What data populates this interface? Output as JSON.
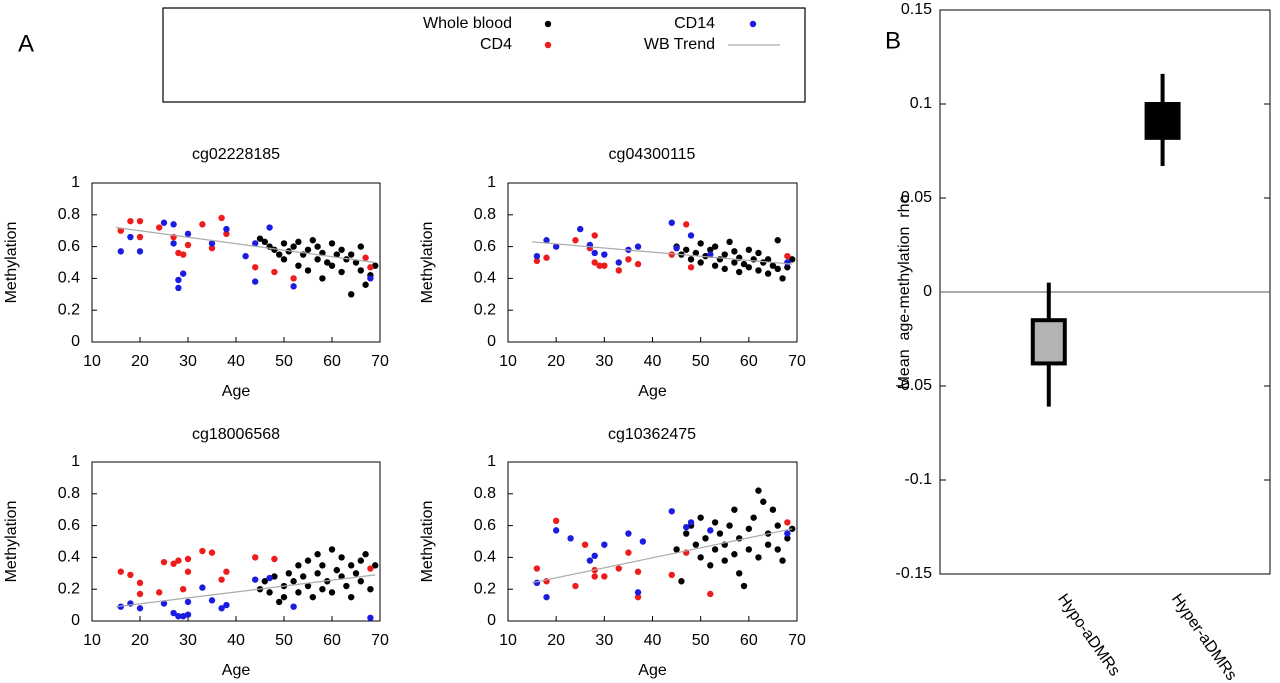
{
  "chart_data": [
    {
      "type": "scatter",
      "panel_label": "A",
      "title": "cg02228185",
      "xlabel": "Age",
      "ylabel": "Methylation",
      "xlim": [
        10,
        70
      ],
      "ylim": [
        0,
        1
      ],
      "xticks": [
        10,
        20,
        30,
        40,
        50,
        60,
        70
      ],
      "yticks": [
        0,
        0.2,
        0.4,
        0.6,
        0.8,
        1
      ],
      "series": [
        {
          "name": "Whole blood",
          "color": "#000000",
          "x": [
            45,
            46,
            47,
            48,
            49,
            50,
            50,
            51,
            52,
            53,
            53,
            54,
            55,
            55,
            56,
            57,
            57,
            58,
            58,
            59,
            60,
            60,
            61,
            62,
            62,
            63,
            64,
            64,
            65,
            66,
            66,
            67,
            68,
            69
          ],
          "values": [
            0.65,
            0.63,
            0.6,
            0.58,
            0.55,
            0.62,
            0.52,
            0.57,
            0.6,
            0.48,
            0.63,
            0.55,
            0.58,
            0.45,
            0.64,
            0.52,
            0.6,
            0.4,
            0.56,
            0.5,
            0.62,
            0.48,
            0.55,
            0.44,
            0.58,
            0.52,
            0.3,
            0.55,
            0.5,
            0.45,
            0.6,
            0.36,
            0.42,
            0.48
          ]
        },
        {
          "name": "CD4",
          "color": "#ee1c1c",
          "x": [
            16,
            18,
            20,
            20,
            24,
            27,
            28,
            29,
            30,
            33,
            35,
            37,
            38,
            44,
            48,
            52,
            67,
            68
          ],
          "values": [
            0.7,
            0.76,
            0.76,
            0.66,
            0.72,
            0.66,
            0.56,
            0.55,
            0.61,
            0.74,
            0.59,
            0.78,
            0.68,
            0.47,
            0.44,
            0.4,
            0.53,
            0.47
          ]
        },
        {
          "name": "CD14",
          "color": "#1c1ce0",
          "x": [
            16,
            18,
            20,
            25,
            27,
            27,
            28,
            28,
            29,
            30,
            35,
            38,
            42,
            44,
            44,
            47,
            52,
            68
          ],
          "values": [
            0.57,
            0.66,
            0.57,
            0.75,
            0.74,
            0.62,
            0.34,
            0.39,
            0.43,
            0.68,
            0.62,
            0.71,
            0.54,
            0.62,
            0.38,
            0.72,
            0.35,
            0.4
          ]
        },
        {
          "name": "WB Trend",
          "color": "#aaaaaa",
          "x": [
            15,
            69
          ],
          "values": [
            0.72,
            0.5
          ]
        }
      ]
    },
    {
      "type": "scatter",
      "title": "cg04300115",
      "xlabel": "Age",
      "ylabel": "Methylation",
      "xlim": [
        10,
        70
      ],
      "ylim": [
        0,
        1
      ],
      "xticks": [
        10,
        20,
        30,
        40,
        50,
        60,
        70
      ],
      "yticks": [
        0,
        0.2,
        0.4,
        0.6,
        0.8,
        1
      ],
      "series": [
        {
          "color": "#000000",
          "x": [
            45,
            46,
            47,
            48,
            49,
            50,
            50,
            51,
            52,
            53,
            53,
            54,
            55,
            55,
            56,
            57,
            57,
            58,
            58,
            59,
            60,
            60,
            61,
            62,
            62,
            63,
            64,
            64,
            65,
            66,
            66,
            67,
            68,
            69
          ],
          "values": [
            0.6,
            0.55,
            0.58,
            0.52,
            0.56,
            0.62,
            0.5,
            0.54,
            0.58,
            0.48,
            0.6,
            0.52,
            0.55,
            0.46,
            0.63,
            0.5,
            0.57,
            0.44,
            0.53,
            0.49,
            0.58,
            0.47,
            0.52,
            0.45,
            0.56,
            0.5,
            0.43,
            0.52,
            0.48,
            0.46,
            0.64,
            0.4,
            0.47,
            0.52
          ]
        },
        {
          "color": "#ee1c1c",
          "x": [
            16,
            18,
            24,
            27,
            28,
            28,
            29,
            30,
            33,
            35,
            37,
            44,
            47,
            48,
            68
          ],
          "values": [
            0.51,
            0.53,
            0.64,
            0.59,
            0.67,
            0.5,
            0.48,
            0.48,
            0.45,
            0.52,
            0.49,
            0.55,
            0.74,
            0.47,
            0.54
          ]
        },
        {
          "color": "#1c1ce0",
          "x": [
            16,
            18,
            20,
            25,
            27,
            28,
            30,
            33,
            35,
            37,
            44,
            45,
            48,
            52,
            68
          ],
          "values": [
            0.54,
            0.64,
            0.6,
            0.71,
            0.61,
            0.56,
            0.55,
            0.5,
            0.58,
            0.6,
            0.75,
            0.59,
            0.67,
            0.55,
            0.5
          ]
        },
        {
          "color": "#aaaaaa",
          "x": [
            15,
            69
          ],
          "values": [
            0.63,
            0.49
          ]
        }
      ]
    },
    {
      "type": "scatter",
      "title": "cg18006568",
      "xlabel": "Age",
      "ylabel": "Methylation",
      "xlim": [
        10,
        70
      ],
      "ylim": [
        0,
        1
      ],
      "xticks": [
        10,
        20,
        30,
        40,
        50,
        60,
        70
      ],
      "yticks": [
        0,
        0.2,
        0.4,
        0.6,
        0.8,
        1
      ],
      "series": [
        {
          "color": "#000000",
          "x": [
            45,
            46,
            47,
            48,
            49,
            50,
            50,
            51,
            52,
            53,
            53,
            54,
            55,
            55,
            56,
            57,
            57,
            58,
            58,
            59,
            60,
            60,
            61,
            62,
            62,
            63,
            64,
            64,
            65,
            66,
            66,
            67,
            68,
            69
          ],
          "values": [
            0.2,
            0.25,
            0.18,
            0.28,
            0.12,
            0.22,
            0.15,
            0.3,
            0.25,
            0.35,
            0.18,
            0.28,
            0.22,
            0.38,
            0.15,
            0.3,
            0.42,
            0.2,
            0.35,
            0.25,
            0.45,
            0.18,
            0.32,
            0.28,
            0.4,
            0.22,
            0.35,
            0.15,
            0.3,
            0.38,
            0.25,
            0.42,
            0.2,
            0.35
          ]
        },
        {
          "color": "#ee1c1c",
          "x": [
            16,
            18,
            20,
            20,
            24,
            25,
            27,
            28,
            29,
            30,
            30,
            33,
            35,
            37,
            38,
            44,
            48,
            68
          ],
          "values": [
            0.31,
            0.29,
            0.24,
            0.17,
            0.18,
            0.37,
            0.36,
            0.38,
            0.2,
            0.39,
            0.31,
            0.44,
            0.43,
            0.26,
            0.31,
            0.4,
            0.39,
            0.33
          ]
        },
        {
          "color": "#1c1ce0",
          "x": [
            16,
            18,
            20,
            25,
            27,
            28,
            29,
            30,
            30,
            33,
            35,
            37,
            38,
            44,
            47,
            52,
            68
          ],
          "values": [
            0.09,
            0.11,
            0.08,
            0.11,
            0.05,
            0.03,
            0.03,
            0.04,
            0.12,
            0.21,
            0.13,
            0.08,
            0.1,
            0.26,
            0.27,
            0.09,
            0.02
          ]
        },
        {
          "color": "#aaaaaa",
          "x": [
            15,
            69
          ],
          "values": [
            0.09,
            0.29
          ]
        }
      ]
    },
    {
      "type": "scatter",
      "title": "cg10362475",
      "xlabel": "Age",
      "ylabel": "Methylation",
      "xlim": [
        10,
        70
      ],
      "ylim": [
        0,
        1
      ],
      "xticks": [
        10,
        20,
        30,
        40,
        50,
        60,
        70
      ],
      "yticks": [
        0,
        0.2,
        0.4,
        0.6,
        0.8,
        1
      ],
      "series": [
        {
          "color": "#000000",
          "x": [
            45,
            46,
            47,
            48,
            49,
            50,
            50,
            51,
            52,
            53,
            53,
            54,
            55,
            55,
            56,
            57,
            57,
            58,
            58,
            59,
            60,
            60,
            61,
            62,
            62,
            63,
            64,
            64,
            65,
            66,
            66,
            67,
            68,
            69
          ],
          "values": [
            0.45,
            0.25,
            0.55,
            0.6,
            0.48,
            0.65,
            0.4,
            0.52,
            0.35,
            0.62,
            0.45,
            0.55,
            0.38,
            0.48,
            0.6,
            0.42,
            0.7,
            0.3,
            0.52,
            0.22,
            0.58,
            0.45,
            0.65,
            0.4,
            0.82,
            0.75,
            0.55,
            0.48,
            0.7,
            0.45,
            0.6,
            0.38,
            0.52,
            0.58
          ]
        },
        {
          "color": "#ee1c1c",
          "x": [
            16,
            18,
            20,
            24,
            26,
            28,
            28,
            30,
            33,
            35,
            37,
            37,
            44,
            47,
            52,
            68
          ],
          "values": [
            0.33,
            0.25,
            0.63,
            0.22,
            0.48,
            0.28,
            0.32,
            0.28,
            0.33,
            0.43,
            0.15,
            0.31,
            0.29,
            0.43,
            0.17,
            0.62
          ]
        },
        {
          "color": "#1c1ce0",
          "x": [
            16,
            18,
            20,
            23,
            27,
            28,
            30,
            35,
            37,
            38,
            44,
            47,
            48,
            52,
            68
          ],
          "values": [
            0.24,
            0.15,
            0.57,
            0.52,
            0.38,
            0.41,
            0.48,
            0.55,
            0.18,
            0.5,
            0.69,
            0.59,
            0.62,
            0.57,
            0.55
          ]
        },
        {
          "color": "#aaaaaa",
          "x": [
            15,
            69
          ],
          "values": [
            0.24,
            0.58
          ]
        }
      ]
    },
    {
      "type": "box",
      "panel_label": "B",
      "ylabel": "Mean  age-methylation  rho",
      "categories": [
        "Hypo-aDMRs",
        "Hyper-aDMRs"
      ],
      "ylim": [
        -0.15,
        0.15
      ],
      "yticks": [
        0.15,
        0.1,
        0.05,
        0,
        -0.05,
        -0.1,
        -0.15
      ],
      "zero_line": true,
      "boxes": [
        {
          "q1": -0.038,
          "q3": -0.015,
          "whisker_low": -0.061,
          "whisker_high": 0.005,
          "color": "#b3b3b3"
        },
        {
          "q1": 0.082,
          "q3": 0.1,
          "whisker_low": 0.067,
          "whisker_high": 0.116,
          "color": "#000000"
        }
      ]
    }
  ]
}
